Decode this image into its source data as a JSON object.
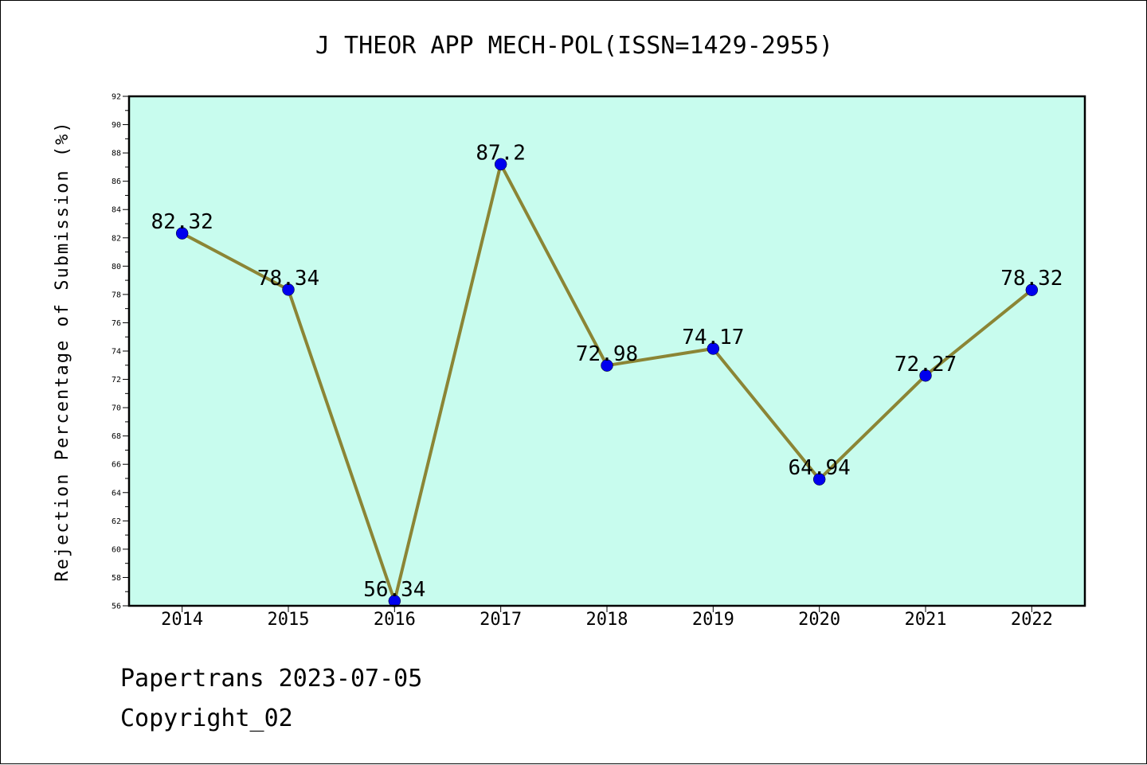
{
  "chart_data": {
    "type": "line",
    "title": "J THEOR APP MECH-POL(ISSN=1429-2955)",
    "xlabel": "",
    "ylabel": "Rejection Percentage of Submission (%)",
    "categories": [
      "2014",
      "2015",
      "2016",
      "2017",
      "2018",
      "2019",
      "2020",
      "2021",
      "2022"
    ],
    "series": [
      {
        "values": [
          82.32,
          78.34,
          56.34,
          87.2,
          72.98,
          74.17,
          64.94,
          72.27,
          78.32
        ]
      }
    ],
    "data_labels": [
      "82.32",
      "78.34",
      "56.34",
      "87.2",
      "72.98",
      "74.17",
      "64.94",
      "72.27",
      "78.32"
    ],
    "ylim": [
      56,
      92
    ],
    "y_major_step": 2,
    "y_minor_step": 1,
    "grid": false,
    "colors": {
      "plot_background": "#c8fcee",
      "line": "#8b8535",
      "marker": "#0000ee"
    }
  },
  "footer": {
    "line1": "Papertrans 2023-07-05",
    "line2": "Copyright_02"
  }
}
